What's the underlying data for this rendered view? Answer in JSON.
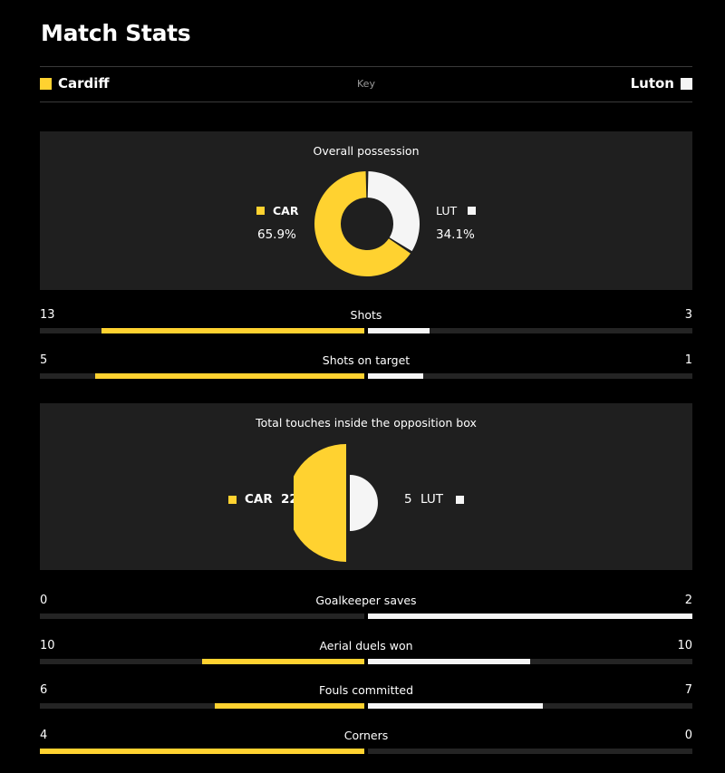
{
  "title": "Match Stats",
  "key": {
    "home_team": "Cardiff",
    "away_team": "Luton",
    "label": "Key",
    "home_color": "#ffd230",
    "away_color": "#f5f5f5"
  },
  "possession": {
    "title": "Overall possession",
    "home_abbr": "CAR",
    "away_abbr": "LUT",
    "home_pct": 65.9,
    "away_pct": 34.1,
    "home_label": "65.9%",
    "away_label": "34.1%"
  },
  "touches": {
    "title": "Total touches inside the opposition box",
    "home_abbr": "CAR",
    "away_abbr": "LUT",
    "home_value": 22,
    "away_value": 5
  },
  "stats_a": [
    {
      "label": "Shots",
      "home": 13,
      "away": 3,
      "home_frac": 0.81,
      "away_frac": 0.19
    },
    {
      "label": "Shots on target",
      "home": 5,
      "away": 1,
      "home_frac": 0.83,
      "away_frac": 0.17
    }
  ],
  "stats_b": [
    {
      "label": "Goalkeeper saves",
      "home": 0,
      "away": 2,
      "home_frac": 0,
      "away_frac": 1
    },
    {
      "label": "Aerial duels won",
      "home": 10,
      "away": 10,
      "home_frac": 0.5,
      "away_frac": 0.5
    },
    {
      "label": "Fouls committed",
      "home": 6,
      "away": 7,
      "home_frac": 0.46,
      "away_frac": 0.54
    },
    {
      "label": "Corners",
      "home": 4,
      "away": 0,
      "home_frac": 1,
      "away_frac": 0
    }
  ]
}
